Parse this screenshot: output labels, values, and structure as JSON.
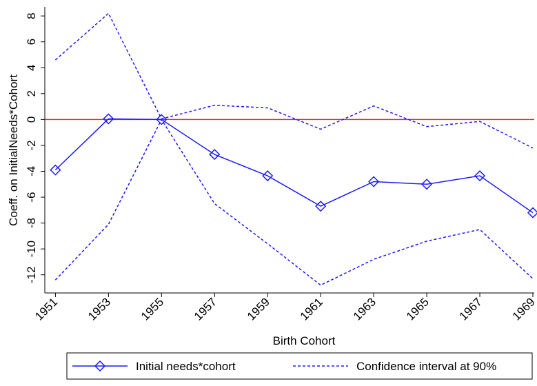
{
  "chart_data": {
    "type": "line",
    "x_label": "Birth Cohort",
    "y_label": "Coeff. on InitialNeeds*Cohort",
    "x": [
      1951,
      1953,
      1955,
      1957,
      1959,
      1961,
      1963,
      1965,
      1967,
      1969
    ],
    "series": [
      {
        "name": "Initial needs*cohort",
        "color": "#1a1aff",
        "style": "solid",
        "marker": "diamond",
        "values": [
          -3.9,
          0.05,
          0,
          -2.7,
          -4.35,
          -6.7,
          -4.8,
          -5.0,
          -4.35,
          -7.2
        ]
      },
      {
        "name": "Confidence interval at 90%",
        "color": "#1a1aff",
        "style": "dashed",
        "values": [
          4.6,
          8.2,
          0.05,
          1.1,
          0.9,
          -0.75,
          1.05,
          -0.55,
          -0.15,
          -2.2
        ],
        "lower_values": [
          -12.4,
          -8.1,
          0,
          -6.5,
          -9.6,
          -12.8,
          -10.8,
          -9.4,
          -8.5,
          -12.3
        ]
      }
    ],
    "reference_line": {
      "y": 0,
      "color": "#e8242c"
    },
    "xlim": [
      1950.6,
      1969
    ],
    "xticks": [
      1951,
      1953,
      1955,
      1957,
      1959,
      1961,
      1963,
      1965,
      1967,
      1969
    ],
    "ylim": [
      -13.4,
      8.7
    ],
    "yticks": [
      -12,
      -10,
      -8,
      -6,
      -4,
      -2,
      0,
      2,
      4,
      6,
      8
    ]
  }
}
